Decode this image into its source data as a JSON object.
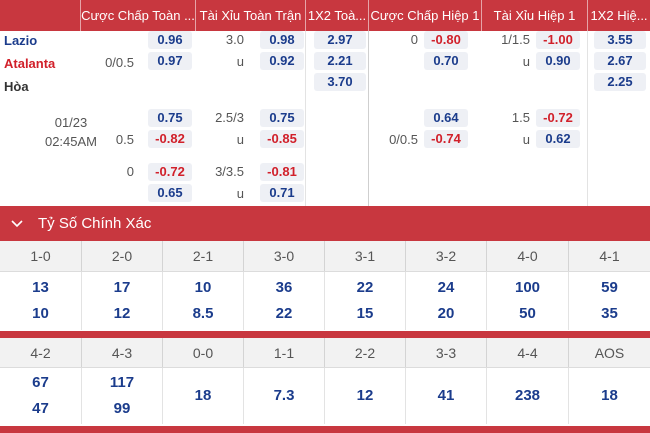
{
  "odds_header": {
    "cols": [
      "Cược Chấp Toàn ...",
      "Tài Xỉu Toàn Trận",
      "1X2 Toà...",
      "Cược Chấp Hiệp 1",
      "Tài Xỉu Hiệp 1",
      "1X2 Hiệ..."
    ]
  },
  "match": {
    "home": "Lazio",
    "away": "Atalanta",
    "draw": "Hòa",
    "date": "01/23",
    "time": "02:45AM"
  },
  "rows": {
    "r1": {
      "hc_home_line": "",
      "hc_home_odd": "0.96",
      "hc_away_line": "0/0.5",
      "hc_away_odd": "0.97",
      "ou_over_line": "3.0",
      "ou_over_odd": "0.98",
      "ou_under_line": "u",
      "ou_under_odd": "0.92",
      "x12_home": "2.97",
      "x12_away": "2.21",
      "x12_draw": "3.70",
      "h1_hc_home_line": "0",
      "h1_hc_home_odd": "-0.80",
      "h1_hc_away_odd": "0.70",
      "h1_ou_over_line": "1/1.5",
      "h1_ou_over_odd": "-1.00",
      "h1_ou_under_line": "u",
      "h1_ou_under_odd": "0.90",
      "h1_x12_home": "3.55",
      "h1_x12_away": "2.67",
      "h1_x12_draw": "2.25"
    },
    "r2": {
      "hc_home_odd": "0.75",
      "hc_away_line": "0.5",
      "hc_away_odd": "-0.82",
      "ou_over_line": "2.5/3",
      "ou_over_odd": "0.75",
      "ou_under_line": "u",
      "ou_under_odd": "-0.85",
      "h1_hc_home_odd": "0.64",
      "h1_hc_away_line": "0/0.5",
      "h1_hc_away_odd": "-0.74",
      "h1_ou_over_line": "1.5",
      "h1_ou_over_odd": "-0.72",
      "h1_ou_under_line": "u",
      "h1_ou_under_odd": "0.62"
    },
    "r3": {
      "hc_home_line": "0",
      "hc_home_odd": "-0.72",
      "hc_away_odd": "0.65",
      "ou_over_line": "3/3.5",
      "ou_over_odd": "-0.81",
      "ou_under_line": "u",
      "ou_under_odd": "0.71"
    }
  },
  "correct_score": {
    "title": "Tỷ Số Chính Xác",
    "row1_scores": [
      "1-0",
      "2-0",
      "2-1",
      "3-0",
      "3-1",
      "3-2",
      "4-0",
      "4-1"
    ],
    "row1_top": [
      "13",
      "17",
      "10",
      "36",
      "22",
      "24",
      "100",
      "59"
    ],
    "row1_bottom": [
      "10",
      "12",
      "8.5",
      "22",
      "15",
      "20",
      "50",
      "35"
    ],
    "row2_scores": [
      "4-2",
      "4-3",
      "0-0",
      "1-1",
      "2-2",
      "3-3",
      "4-4",
      "AOS"
    ],
    "row2_top": [
      "67",
      "117",
      "",
      "",
      "",
      "",
      "",
      ""
    ],
    "row2_bottom": [
      "47",
      "99",
      "",
      "",
      "",
      "",
      "",
      ""
    ],
    "row2_single": [
      "",
      "",
      "18",
      "7.3",
      "12",
      "41",
      "238",
      "18"
    ]
  },
  "colors": {
    "header_bg": "#c8373f",
    "odd_blue": "#1b3c8c",
    "odd_red": "#d1202a",
    "odd_bg": "#eef0f5"
  }
}
